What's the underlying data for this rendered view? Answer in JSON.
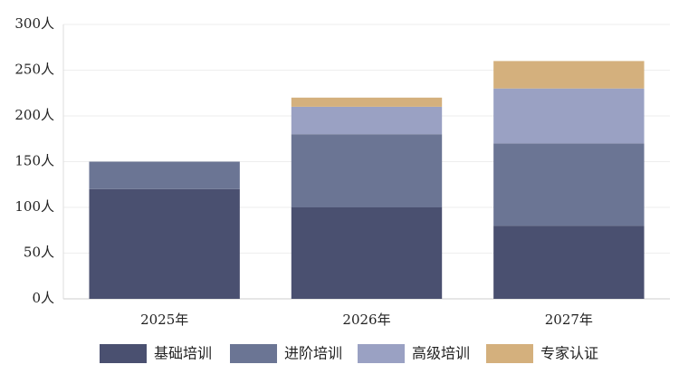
{
  "chart_data": {
    "type": "stacked-bar",
    "categories": [
      "2025年",
      "2026年",
      "2027年"
    ],
    "series": [
      {
        "name": "基础培训",
        "color": "#4a5070",
        "values": [
          120,
          100,
          80
        ]
      },
      {
        "name": "进阶培训",
        "color": "#6b7594",
        "values": [
          30,
          80,
          90
        ]
      },
      {
        "name": "高级培训",
        "color": "#9aa1c3",
        "values": [
          0,
          30,
          60
        ]
      },
      {
        "name": "专家认证",
        "color": "#d4b07d",
        "values": [
          0,
          10,
          30
        ]
      }
    ],
    "ylim": [
      0,
      300
    ],
    "yticks": [
      {
        "value": 0,
        "label": "0人"
      },
      {
        "value": 50,
        "label": "50人"
      },
      {
        "value": 100,
        "label": "100人"
      },
      {
        "value": 150,
        "label": "150人"
      },
      {
        "value": 200,
        "label": "200人"
      },
      {
        "value": 250,
        "label": "250人"
      },
      {
        "value": 300,
        "label": "300人"
      }
    ],
    "grid": true
  }
}
